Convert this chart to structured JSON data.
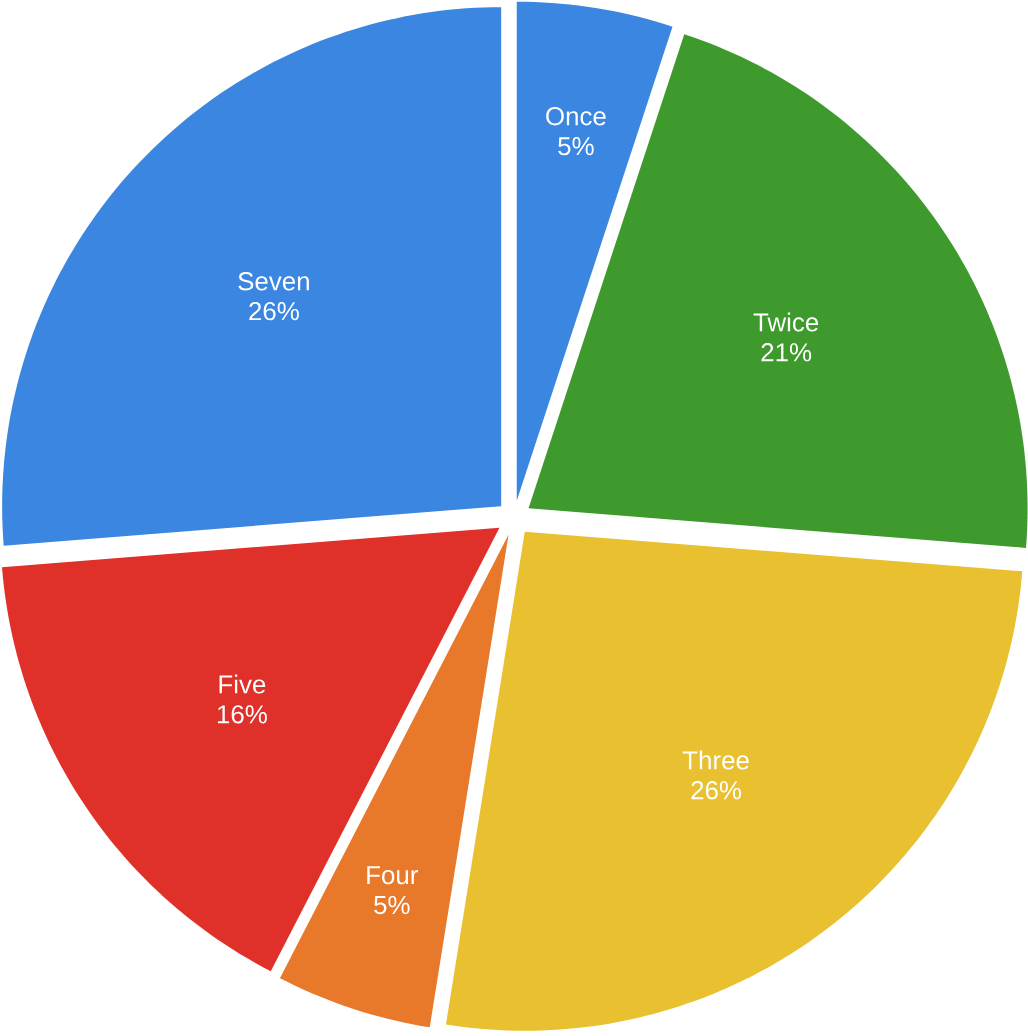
{
  "chart_data": {
    "type": "pie",
    "categories": [
      "Once",
      "Twice",
      "Three",
      "Four",
      "Five",
      "Seven"
    ],
    "values": [
      5,
      21,
      26,
      5,
      16,
      26
    ],
    "value_labels": [
      "5%",
      "21%",
      "26%",
      "5%",
      "16%",
      "26%"
    ],
    "colors": [
      "#3a86e0",
      "#3f9a2e",
      "#e8c030",
      "#e8782a",
      "#e0302a",
      "#3a86e0"
    ]
  }
}
